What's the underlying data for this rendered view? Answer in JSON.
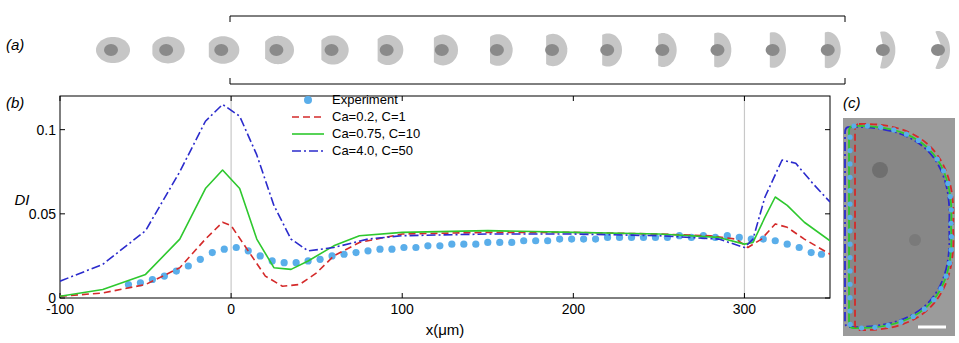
{
  "panel_labels": [
    "(a)",
    "(b)",
    "(c)"
  ],
  "chart_data": {
    "type": "line",
    "xlabel": "x(μm)",
    "ylabel": "DI",
    "xlim": [
      -100,
      350
    ],
    "xticks": [
      -100,
      0,
      100,
      200,
      300
    ],
    "ylim": [
      0,
      0.12
    ],
    "yticks": [
      0,
      0.05,
      0.1
    ],
    "reference_lines_x": [
      0,
      300
    ],
    "legend": "top",
    "series": [
      {
        "name": "Experiment",
        "type": "scatter",
        "marker": "circle",
        "color": "#5aaeea",
        "x": [
          -60,
          -53,
          -46,
          -39,
          -32,
          -25,
          -18,
          -11,
          -4,
          3,
          10,
          17,
          24,
          31,
          38,
          45,
          52,
          59,
          66,
          73,
          80,
          87,
          94,
          101,
          108,
          115,
          122,
          129,
          136,
          143,
          150,
          157,
          164,
          171,
          178,
          185,
          192,
          199,
          206,
          213,
          220,
          227,
          234,
          241,
          248,
          255,
          262,
          269,
          276,
          283,
          290,
          297,
          304,
          311,
          318,
          325,
          332,
          339,
          345
        ],
        "values": [
          0.008,
          0.009,
          0.011,
          0.013,
          0.016,
          0.019,
          0.023,
          0.027,
          0.029,
          0.03,
          0.028,
          0.025,
          0.022,
          0.021,
          0.021,
          0.022,
          0.023,
          0.025,
          0.026,
          0.027,
          0.028,
          0.029,
          0.029,
          0.03,
          0.03,
          0.031,
          0.031,
          0.032,
          0.032,
          0.032,
          0.033,
          0.033,
          0.033,
          0.034,
          0.034,
          0.034,
          0.035,
          0.035,
          0.035,
          0.035,
          0.036,
          0.036,
          0.036,
          0.036,
          0.036,
          0.036,
          0.037,
          0.036,
          0.037,
          0.036,
          0.037,
          0.036,
          0.035,
          0.035,
          0.034,
          0.032,
          0.03,
          0.027,
          0.026
        ]
      },
      {
        "name": "Ca=0.2, C=1",
        "type": "line",
        "line_style": "dashed",
        "color": "#d42a2a",
        "x": [
          -100,
          -75,
          -50,
          -30,
          -15,
          -5,
          0,
          10,
          20,
          30,
          40,
          50,
          60,
          75,
          100,
          150,
          200,
          250,
          280,
          295,
          302,
          310,
          318,
          325,
          335,
          350
        ],
        "values": [
          0.001,
          0.003,
          0.008,
          0.018,
          0.035,
          0.045,
          0.043,
          0.028,
          0.013,
          0.007,
          0.008,
          0.015,
          0.025,
          0.033,
          0.038,
          0.039,
          0.039,
          0.038,
          0.037,
          0.035,
          0.03,
          0.035,
          0.044,
          0.042,
          0.035,
          0.026
        ]
      },
      {
        "name": "Ca=0.75, C=10",
        "type": "line",
        "line_style": "solid",
        "color": "#2ec82e",
        "x": [
          -100,
          -75,
          -50,
          -30,
          -15,
          -5,
          5,
          15,
          25,
          35,
          45,
          60,
          75,
          100,
          150,
          200,
          250,
          285,
          300,
          305,
          312,
          318,
          325,
          335,
          350
        ],
        "values": [
          0.001,
          0.005,
          0.014,
          0.035,
          0.065,
          0.076,
          0.065,
          0.035,
          0.018,
          0.017,
          0.022,
          0.031,
          0.037,
          0.039,
          0.04,
          0.039,
          0.038,
          0.036,
          0.032,
          0.033,
          0.048,
          0.06,
          0.055,
          0.045,
          0.034
        ]
      },
      {
        "name": "Ca=4.0, C=50",
        "type": "line",
        "line_style": "dashdot",
        "color": "#2b2bcc",
        "x": [
          -100,
          -75,
          -50,
          -30,
          -15,
          -5,
          5,
          15,
          25,
          35,
          45,
          60,
          80,
          100,
          150,
          200,
          250,
          285,
          300,
          305,
          312,
          322,
          330,
          340,
          350
        ],
        "values": [
          0.01,
          0.02,
          0.04,
          0.075,
          0.105,
          0.115,
          0.108,
          0.085,
          0.055,
          0.035,
          0.028,
          0.03,
          0.035,
          0.037,
          0.038,
          0.038,
          0.037,
          0.035,
          0.03,
          0.035,
          0.06,
          0.082,
          0.08,
          0.068,
          0.057
        ]
      }
    ]
  }
}
